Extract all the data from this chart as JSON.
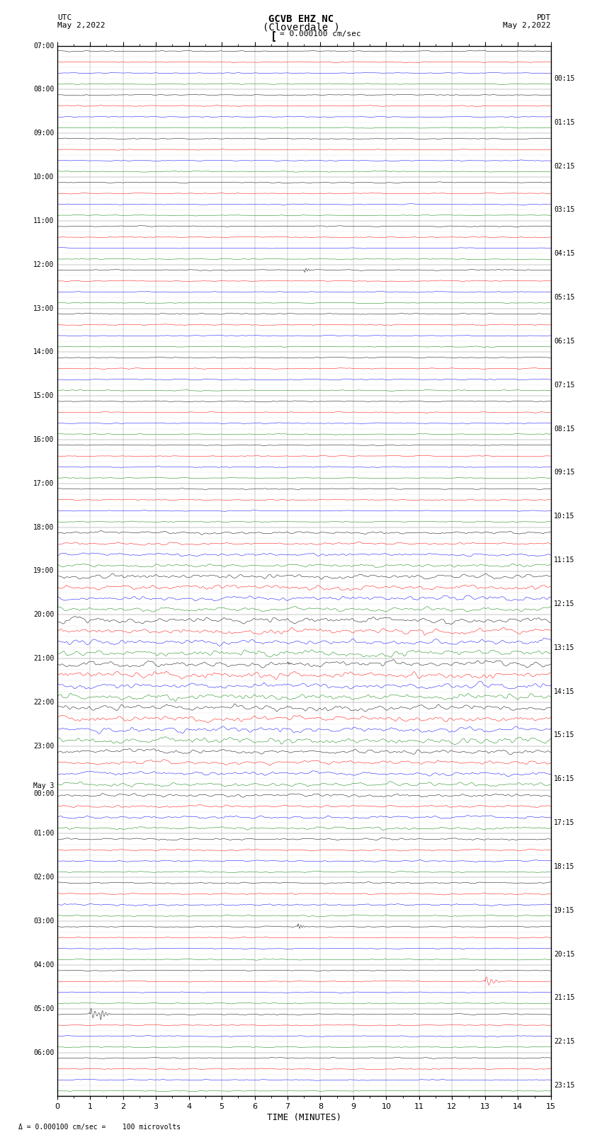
{
  "title_line1": "GCVB EHZ NC",
  "title_line2": "(Cloverdale )",
  "scale_label": "= 0.000100 cm/sec",
  "left_date": "May 2,2022",
  "right_date": "May 2,2022",
  "left_timezone": "UTC",
  "right_timezone": "PDT",
  "xlabel": "TIME (MINUTES)",
  "bottom_label": "= 0.000100 cm/sec =    100 microvolts",
  "figsize": [
    8.5,
    16.13
  ],
  "dpi": 100,
  "bg_color": "#ffffff",
  "trace_colors_cycle": [
    "black",
    "red",
    "blue",
    "green"
  ],
  "left_labels": [
    "07:00",
    "08:00",
    "09:00",
    "10:00",
    "11:00",
    "12:00",
    "13:00",
    "14:00",
    "15:00",
    "16:00",
    "17:00",
    "18:00",
    "19:00",
    "20:00",
    "21:00",
    "22:00",
    "23:00",
    "May 3\n00:00",
    "01:00",
    "02:00",
    "03:00",
    "04:00",
    "05:00",
    "06:00"
  ],
  "right_labels": [
    "00:15",
    "01:15",
    "02:15",
    "03:15",
    "04:15",
    "05:15",
    "06:15",
    "07:15",
    "08:15",
    "09:15",
    "10:15",
    "11:15",
    "12:15",
    "13:15",
    "14:15",
    "15:15",
    "16:15",
    "17:15",
    "18:15",
    "19:15",
    "20:15",
    "21:15",
    "22:15",
    "23:15"
  ]
}
